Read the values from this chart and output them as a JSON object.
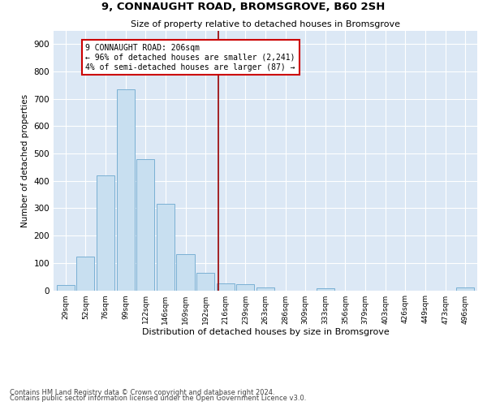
{
  "title": "9, CONNAUGHT ROAD, BROMSGROVE, B60 2SH",
  "subtitle": "Size of property relative to detached houses in Bromsgrove",
  "xlabel": "Distribution of detached houses by size in Bromsgrove",
  "ylabel": "Number of detached properties",
  "bar_color": "#c8dff0",
  "bar_edge_color": "#7ab0d4",
  "background_color": "#dce8f5",
  "grid_color": "#ffffff",
  "fig_background": "#ffffff",
  "categories": [
    "29sqm",
    "52sqm",
    "76sqm",
    "99sqm",
    "122sqm",
    "146sqm",
    "169sqm",
    "192sqm",
    "216sqm",
    "239sqm",
    "263sqm",
    "286sqm",
    "309sqm",
    "333sqm",
    "356sqm",
    "379sqm",
    "403sqm",
    "426sqm",
    "449sqm",
    "473sqm",
    "496sqm"
  ],
  "values": [
    20,
    122,
    420,
    735,
    480,
    315,
    133,
    65,
    25,
    22,
    10,
    0,
    0,
    8,
    0,
    0,
    0,
    0,
    0,
    0,
    10
  ],
  "ylim": [
    0,
    950
  ],
  "yticks": [
    0,
    100,
    200,
    300,
    400,
    500,
    600,
    700,
    800,
    900
  ],
  "property_line_x": 7.65,
  "annotation_text": "9 CONNAUGHT ROAD: 206sqm\n← 96% of detached houses are smaller (2,241)\n4% of semi-detached houses are larger (87) →",
  "annotation_box_color": "#ffffff",
  "annotation_box_edge_color": "#cc0000",
  "line_color": "#990000",
  "footer1": "Contains HM Land Registry data © Crown copyright and database right 2024.",
  "footer2": "Contains public sector information licensed under the Open Government Licence v3.0."
}
